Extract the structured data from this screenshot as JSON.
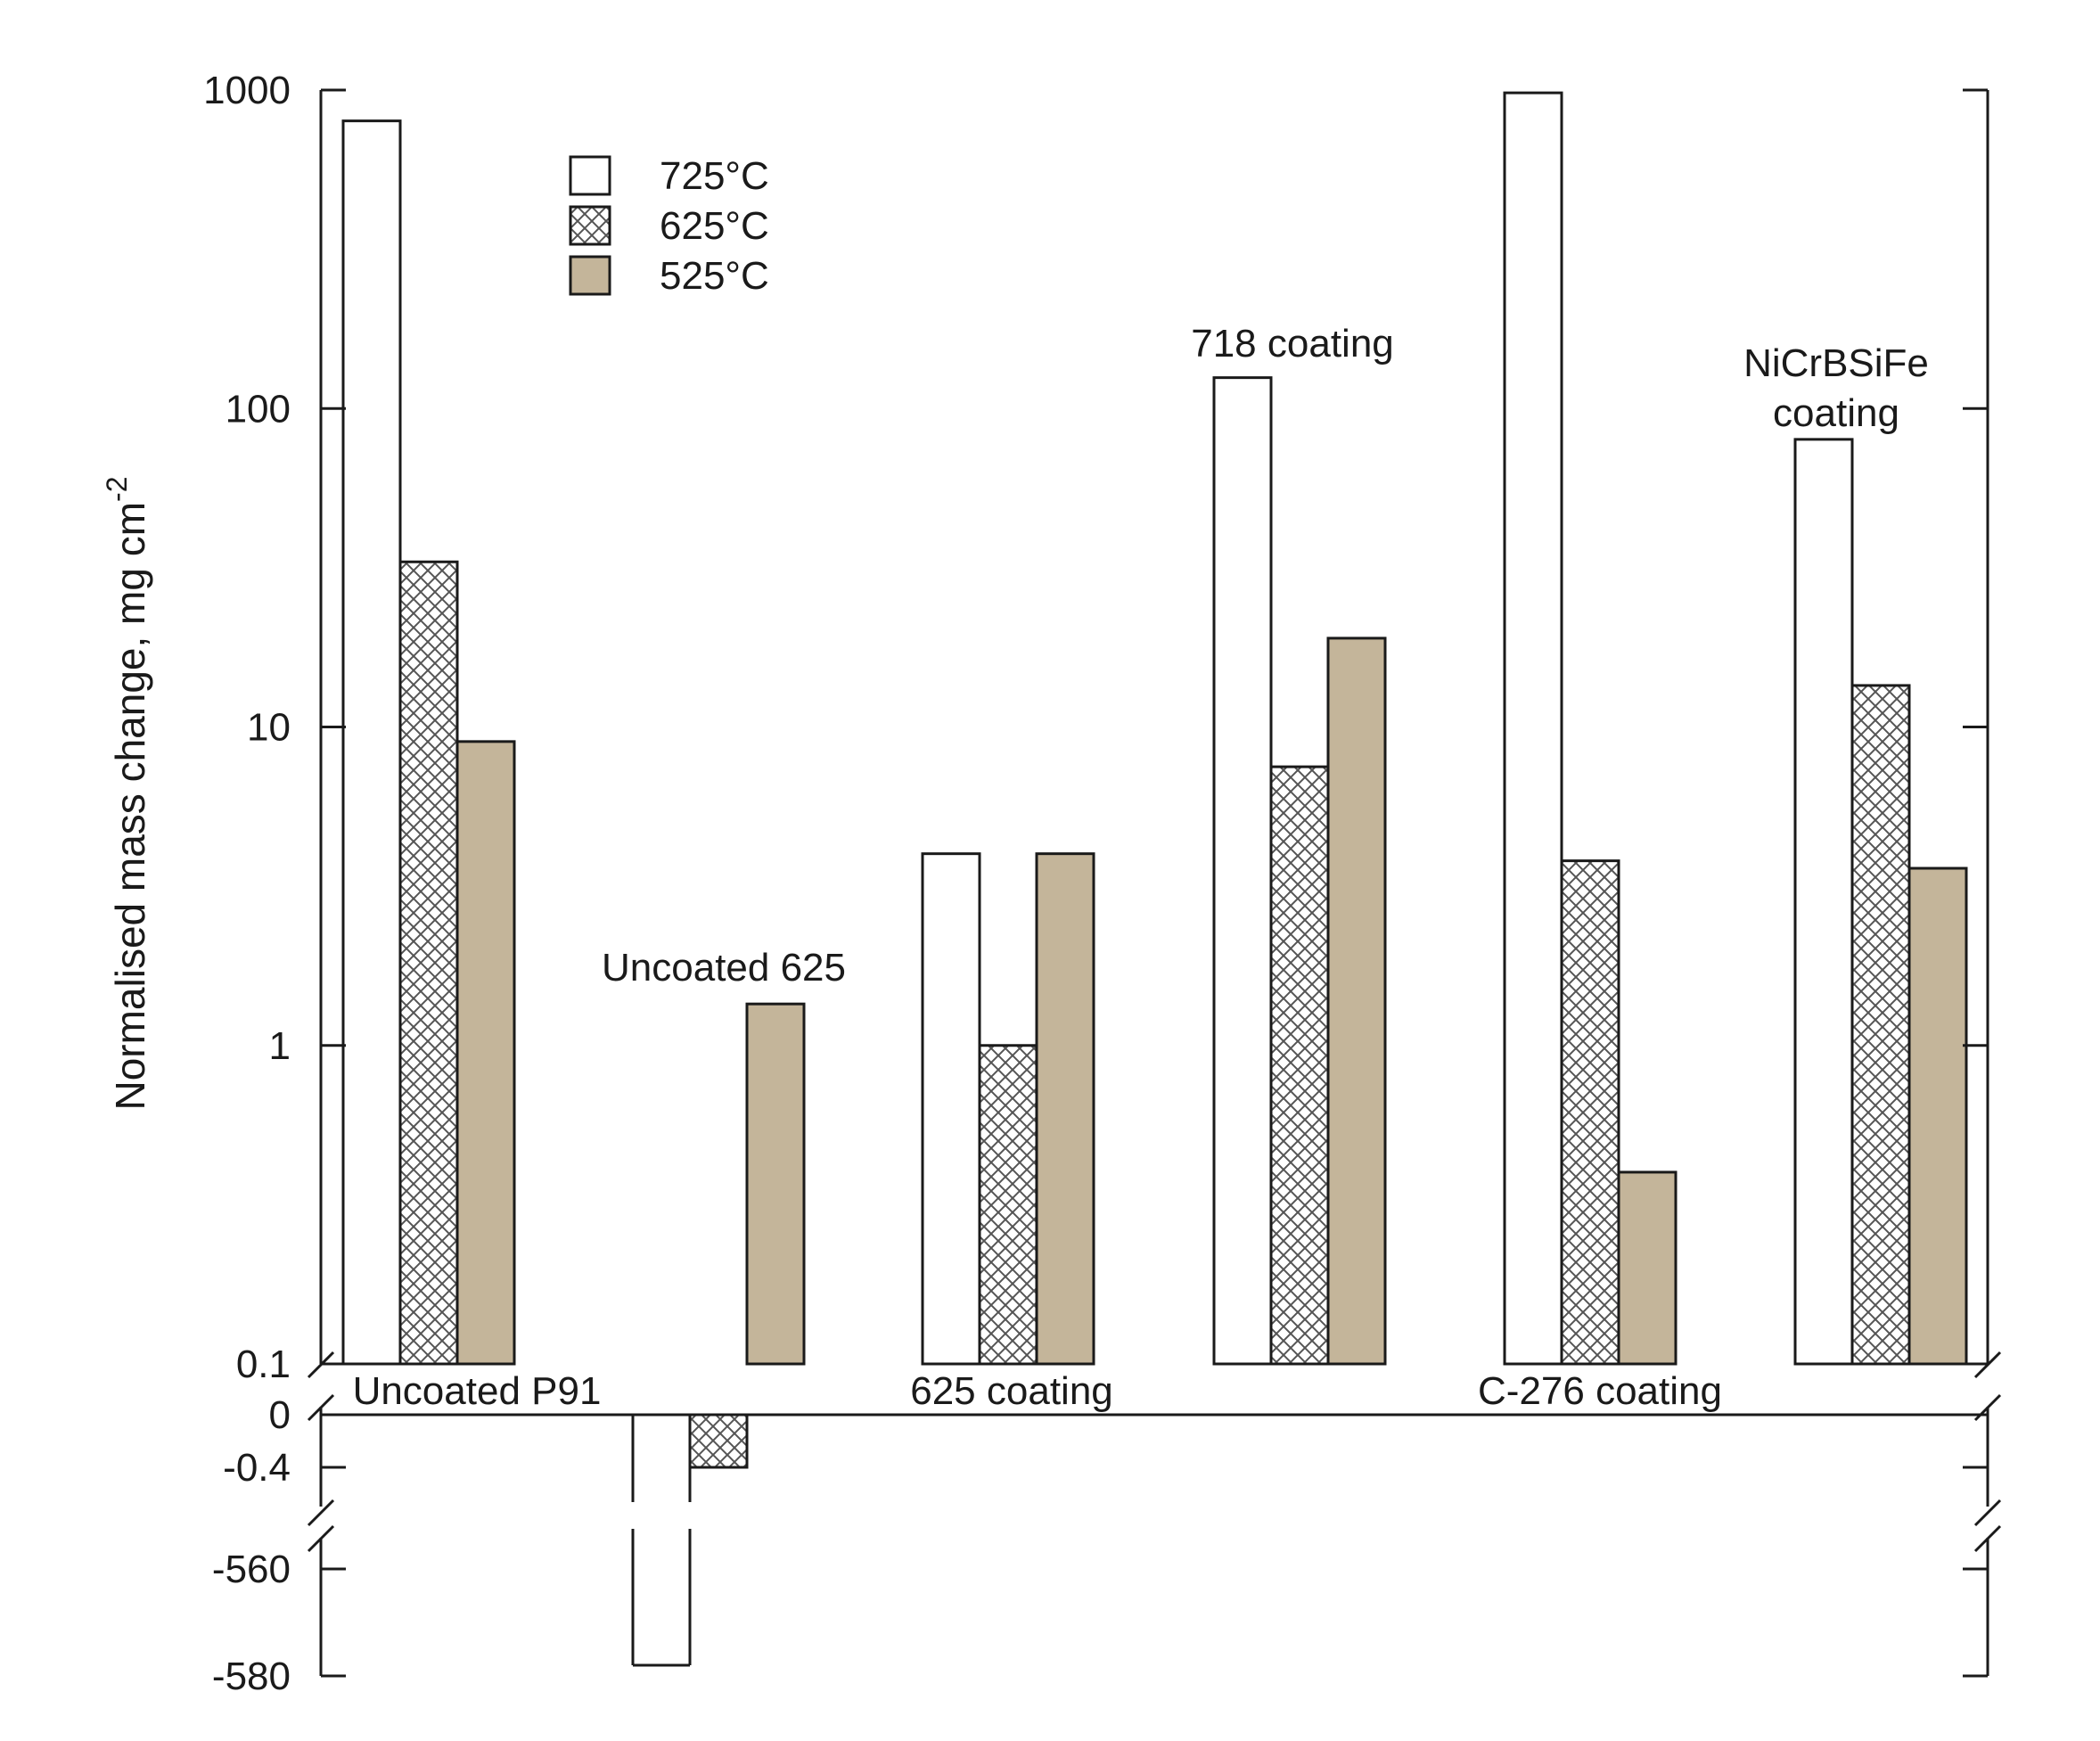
{
  "chart_data": {
    "type": "bar",
    "title": "",
    "xlabel": "",
    "ylabel": "Normalised mass change, mg cm",
    "ylabel_superscript": "-2",
    "yscale": "log (broken axis with linear negative segments)",
    "ylim": [
      0.1,
      1000
    ],
    "y_ticks_log": [
      "1000",
      "100",
      "10",
      "1",
      "0.1"
    ],
    "y_ticks_negative": [
      "0",
      "-0.4",
      "-560",
      "-580"
    ],
    "legend_position": "top-left",
    "colors": {
      "725": "#ffffff",
      "625": "#ffffff",
      "525": "#c4b59a",
      "stroke": "#1a1a1a",
      "hatch": "#555555"
    },
    "series": [
      {
        "name": "725°C",
        "key": "725",
        "pattern": "open"
      },
      {
        "name": "625°C",
        "key": "625",
        "pattern": "crosshatch"
      },
      {
        "name": "525°C",
        "key": "525",
        "pattern": "solid"
      }
    ],
    "categories": [
      {
        "label": "Uncoated P91",
        "label_lines": [
          "Uncoated P91"
        ],
        "label_position": "below-break",
        "values": {
          "725": 800,
          "625": 33,
          "525": 9
        }
      },
      {
        "label": "Uncoated 625",
        "label_lines": [
          "Uncoated 625"
        ],
        "label_position": "above-bars",
        "values": {
          "725": -578,
          "625": -0.4,
          "525": 1.35
        }
      },
      {
        "label": "625 coating",
        "label_lines": [
          "625 coating"
        ],
        "label_position": "below-break",
        "values": {
          "725": 4.0,
          "625": 1.0,
          "525": 4.0
        }
      },
      {
        "label": "718 coating",
        "label_lines": [
          "718 coating"
        ],
        "label_position": "above-bars",
        "values": {
          "725": 125,
          "625": 7.5,
          "525": 19
        }
      },
      {
        "label": "C-276 coating",
        "label_lines": [
          "C-276 coating"
        ],
        "label_position": "below-break",
        "values": {
          "725": 980,
          "625": 3.8,
          "525": 0.4
        }
      },
      {
        "label": "NiCrBSiFe coating",
        "label_lines": [
          "NiCrBSiFe",
          "coating"
        ],
        "label_position": "above-bars",
        "values": {
          "725": 80,
          "625": 13.5,
          "525": 3.6
        }
      }
    ]
  }
}
